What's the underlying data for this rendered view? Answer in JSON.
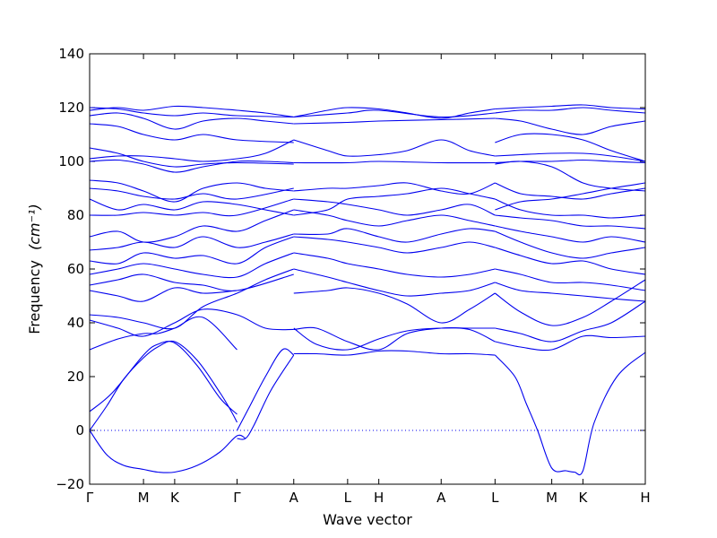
{
  "chart_data": {
    "type": "line",
    "title": "",
    "xlabel": "Wave vector",
    "ylabel": "Frequency",
    "ylabel_unit": "(cm⁻¹)",
    "ylim": [
      -20,
      140
    ],
    "yticks": [
      -20,
      0,
      20,
      40,
      60,
      80,
      100,
      120,
      140
    ],
    "grid": false,
    "line_color": "#0000ee",
    "zero_line": {
      "y": 0,
      "style": "dotted",
      "color": "#0000ee"
    },
    "x_ticks": [
      {
        "label": "Γ",
        "x": 0.0
      },
      {
        "label": "M",
        "x": 0.95
      },
      {
        "label": "K",
        "x": 1.5
      },
      {
        "label": "Γ",
        "x": 2.6
      },
      {
        "label": "A",
        "x": 3.6
      },
      {
        "label": "L",
        "x": 4.55
      },
      {
        "label": "H",
        "x": 5.1
      },
      {
        "label": "A",
        "x": 6.2
      },
      {
        "label": "L",
        "x": 7.15
      },
      {
        "label": "M",
        "x": 8.15
      },
      {
        "label": "K",
        "x": 8.7
      },
      {
        "label": "H",
        "x": 9.8
      }
    ],
    "xlim": [
      0,
      9.8
    ],
    "series": [
      {
        "x": [
          0,
          0.3,
          0.6,
          0.95,
          1.2,
          1.5,
          1.9,
          2.3,
          2.6,
          2.75
        ],
        "y": [
          0,
          -9,
          -13,
          -14.5,
          -15.5,
          -15.5,
          -13,
          -8,
          -2,
          -3
        ]
      },
      {
        "x": [
          0,
          0.3,
          0.6,
          0.95,
          1.2,
          1.5,
          1.9,
          2.3,
          2.5,
          2.6
        ],
        "y": [
          0,
          9,
          19,
          27,
          31,
          33,
          26,
          14,
          7,
          3
        ]
      },
      {
        "x": [
          0,
          0.4,
          0.95,
          1.2,
          1.5,
          1.9,
          2.3,
          2.6
        ],
        "y": [
          7,
          14,
          28,
          32,
          32.5,
          24,
          12,
          6
        ]
      },
      {
        "x": [
          2.6,
          2.75,
          2.9,
          3.2,
          3.6
        ],
        "y": [
          -3,
          -3,
          2,
          15,
          28
        ]
      },
      {
        "x": [
          2.6,
          2.8,
          3.1,
          3.4,
          3.6
        ],
        "y": [
          0,
          8,
          20,
          30,
          28
        ]
      },
      {
        "x": [
          3.6,
          4.0,
          4.55,
          5.1,
          5.6,
          6.2,
          6.7,
          7.15
        ],
        "y": [
          28.5,
          28.5,
          28,
          29.5,
          29.5,
          28.5,
          28.5,
          28
        ]
      },
      {
        "x": [
          3.6,
          4.0,
          4.55,
          5.1,
          5.6,
          6.2,
          6.7,
          7.15
        ],
        "y": [
          37.5,
          38,
          33,
          30,
          36,
          38,
          38,
          38
        ]
      },
      {
        "x": [
          3.6,
          4.0,
          4.55,
          5.1,
          5.6,
          6.2,
          6.7,
          7.15
        ],
        "y": [
          38,
          32,
          30,
          34,
          37,
          38,
          37.5,
          33
        ]
      },
      {
        "x": [
          7.15,
          7.5,
          7.7,
          7.9,
          8.15,
          8.4,
          8.55,
          8.7,
          8.9,
          9.3,
          9.8
        ],
        "y": [
          28,
          20,
          10,
          0,
          -14,
          -15,
          -15.5,
          -15,
          3,
          20,
          29
        ]
      },
      {
        "x": [
          7.15,
          7.6,
          8.15,
          8.7,
          9.2,
          9.8
        ],
        "y": [
          33,
          31,
          30,
          35,
          34.5,
          35
        ]
      },
      {
        "x": [
          7.15,
          7.6,
          8.15,
          8.7,
          9.2,
          9.8
        ],
        "y": [
          38,
          36,
          33,
          37,
          40,
          48
        ]
      },
      {
        "x": [
          0,
          0.5,
          0.95,
          1.2,
          1.5,
          2.0,
          2.6
        ],
        "y": [
          30,
          34,
          36,
          36,
          38,
          42,
          30
        ]
      },
      {
        "x": [
          0,
          0.5,
          0.95,
          1.5,
          2.0,
          2.6,
          3.1,
          3.6
        ],
        "y": [
          41,
          38,
          35,
          40,
          45,
          43,
          38,
          37.5
        ]
      },
      {
        "x": [
          0,
          0.5,
          0.95,
          1.5,
          2.0,
          2.6,
          3.1,
          3.6
        ],
        "y": [
          43,
          42,
          40,
          38,
          46,
          51,
          56,
          60
        ]
      },
      {
        "x": [
          3.6,
          4.2,
          4.55,
          5.1,
          5.6,
          6.2,
          6.7,
          7.15
        ],
        "y": [
          60,
          57,
          55,
          52,
          50,
          51,
          52,
          55
        ]
      },
      {
        "x": [
          3.6,
          4.2,
          4.55,
          5.1,
          5.6,
          6.2,
          6.7,
          7.15
        ],
        "y": [
          51,
          52,
          53,
          51,
          47,
          40,
          45,
          51
        ]
      },
      {
        "x": [
          7.15,
          7.6,
          8.15,
          8.7,
          9.2,
          9.8
        ],
        "y": [
          55,
          52,
          51,
          50,
          49,
          48
        ]
      },
      {
        "x": [
          7.15,
          7.6,
          8.15,
          8.7,
          9.2,
          9.8
        ],
        "y": [
          51,
          44,
          39,
          42,
          48,
          56
        ]
      },
      {
        "x": [
          0,
          0.5,
          0.95,
          1.5,
          2.0,
          2.6
        ],
        "y": [
          52,
          50,
          48,
          53,
          51,
          52
        ]
      },
      {
        "x": [
          0,
          0.5,
          0.95,
          1.5,
          2.0,
          2.6,
          3.6
        ],
        "y": [
          54,
          56,
          58,
          55,
          54,
          52,
          58
        ]
      },
      {
        "x": [
          0,
          0.5,
          0.95,
          1.5,
          2.0,
          2.6,
          3.1,
          3.6
        ],
        "y": [
          58,
          60,
          62,
          60,
          58,
          57,
          62,
          66
        ]
      },
      {
        "x": [
          3.6,
          4.2,
          4.55,
          5.1,
          5.6,
          6.2,
          6.7,
          7.15
        ],
        "y": [
          66,
          64,
          62,
          60,
          58,
          57,
          58,
          60
        ]
      },
      {
        "x": [
          7.15,
          7.6,
          8.15,
          8.7,
          9.2,
          9.8
        ],
        "y": [
          60,
          58,
          55,
          55,
          54,
          52
        ]
      },
      {
        "x": [
          0,
          0.5,
          0.95,
          1.5,
          2.0,
          2.6,
          3.1,
          3.6
        ],
        "y": [
          63,
          62,
          66,
          64,
          65,
          62,
          68,
          72
        ]
      },
      {
        "x": [
          3.6,
          4.2,
          4.55,
          5.1,
          5.6,
          6.2,
          6.7,
          7.15
        ],
        "y": [
          72,
          71,
          70,
          68,
          66,
          68,
          70,
          68
        ]
      },
      {
        "x": [
          7.15,
          7.6,
          8.15,
          8.7,
          9.2,
          9.8
        ],
        "y": [
          68,
          65,
          62,
          63,
          60,
          58
        ]
      },
      {
        "x": [
          0,
          0.5,
          0.95,
          1.5,
          2.0,
          2.6,
          3.1,
          3.6
        ],
        "y": [
          67,
          68,
          70,
          68,
          72,
          68,
          70,
          73
        ]
      },
      {
        "x": [
          3.6,
          4.2,
          4.55,
          5.1,
          5.6,
          6.2,
          6.7,
          7.15
        ],
        "y": [
          73,
          73,
          75,
          72,
          70,
          73,
          75,
          74
        ]
      },
      {
        "x": [
          7.15,
          7.6,
          8.15,
          8.7,
          9.2,
          9.8
        ],
        "y": [
          74,
          70,
          66,
          64,
          66,
          68
        ]
      },
      {
        "x": [
          0,
          0.5,
          0.95,
          1.5,
          2.0,
          2.6,
          3.1,
          3.6
        ],
        "y": [
          72,
          74,
          70,
          72,
          76,
          74,
          78,
          82
        ]
      },
      {
        "x": [
          3.6,
          4.2,
          4.55,
          5.1,
          5.6,
          6.2,
          6.7,
          7.15
        ],
        "y": [
          82,
          80,
          78,
          76,
          78,
          80,
          78,
          76
        ]
      },
      {
        "x": [
          7.15,
          7.6,
          8.15,
          8.7,
          9.2,
          9.8
        ],
        "y": [
          76,
          74,
          72,
          70,
          72,
          70
        ]
      },
      {
        "x": [
          0,
          0.5,
          0.95,
          1.5,
          2.0,
          2.6,
          3.6
        ],
        "y": [
          80,
          80,
          81,
          80,
          81,
          80,
          86
        ]
      },
      {
        "x": [
          3.6,
          4.2,
          4.55,
          5.1,
          5.6,
          6.2,
          6.7,
          7.15
        ],
        "y": [
          86,
          85,
          84,
          82,
          80,
          82,
          84,
          80
        ]
      },
      {
        "x": [
          7.15,
          7.6,
          8.15,
          8.7,
          9.2,
          9.8
        ],
        "y": [
          80,
          79,
          78,
          76,
          76,
          75
        ]
      },
      {
        "x": [
          0,
          0.5,
          0.95,
          1.5,
          2.0,
          2.6,
          3.1,
          3.6
        ],
        "y": [
          86,
          82,
          84,
          82,
          85,
          84,
          82,
          80
        ]
      },
      {
        "x": [
          3.6,
          4.2,
          4.55,
          5.1,
          5.6,
          6.2,
          6.7,
          7.15
        ],
        "y": [
          80,
          82,
          86,
          87,
          88,
          90,
          88,
          86
        ]
      },
      {
        "x": [
          7.15,
          7.6,
          8.15,
          8.7,
          9.2,
          9.8
        ],
        "y": [
          86,
          82,
          80,
          80,
          79,
          80
        ]
      },
      {
        "x": [
          0,
          0.5,
          0.95,
          1.5,
          2.0,
          2.6,
          3.1,
          3.6
        ],
        "y": [
          93,
          92,
          89,
          85,
          90,
          92,
          90,
          89
        ]
      },
      {
        "x": [
          3.6,
          4.2,
          4.55,
          5.1,
          5.6,
          6.2,
          6.7,
          7.15
        ],
        "y": [
          89,
          90,
          90,
          91,
          92,
          89,
          88,
          92
        ]
      },
      {
        "x": [
          7.15,
          7.6,
          8.15,
          8.7,
          9.2,
          9.8
        ],
        "y": [
          92,
          88,
          87,
          86,
          88,
          90
        ]
      },
      {
        "x": [
          0,
          0.5,
          0.95,
          1.5,
          2.0,
          2.6,
          3.6
        ],
        "y": [
          90,
          89,
          87,
          86,
          88,
          86,
          90
        ]
      },
      {
        "x": [
          7.15,
          7.6,
          8.15,
          8.7,
          9.2,
          9.8
        ],
        "y": [
          82,
          85,
          86,
          88,
          90,
          92
        ]
      },
      {
        "x": [
          0,
          0.5,
          0.95,
          1.5,
          2.0,
          2.6,
          3.1,
          3.6
        ],
        "y": [
          100,
          100.5,
          99,
          96,
          98,
          100,
          100,
          99.5
        ]
      },
      {
        "x": [
          3.6,
          4.55,
          5.1,
          6.2,
          7.15
        ],
        "y": [
          99.5,
          99.5,
          100,
          99.5,
          99.5
        ]
      },
      {
        "x": [
          7.15,
          7.6,
          8.15,
          8.7,
          9.2,
          9.8
        ],
        "y": [
          99.5,
          100,
          100,
          100.5,
          100,
          99.5
        ]
      },
      {
        "x": [
          0,
          0.5,
          0.95,
          1.5,
          2.0,
          2.6,
          3.1,
          3.6
        ],
        "y": [
          101,
          102,
          102,
          101,
          100,
          101,
          103,
          108
        ]
      },
      {
        "x": [
          3.6,
          4.2,
          4.55,
          5.1,
          5.6,
          6.2,
          6.7,
          7.15
        ],
        "y": [
          108,
          104,
          102,
          102.5,
          104,
          108,
          104,
          102
        ]
      },
      {
        "x": [
          7.15,
          7.6,
          8.15,
          8.7,
          9.2,
          9.8
        ],
        "y": [
          102,
          102.5,
          103,
          103,
          102,
          100
        ]
      },
      {
        "x": [
          0,
          0.5,
          0.95,
          1.5,
          2.0,
          2.6,
          3.6
        ],
        "y": [
          105,
          103,
          100,
          98,
          99,
          99.5,
          99
        ]
      },
      {
        "x": [
          7.15,
          7.6,
          8.15,
          8.7,
          9.2,
          9.8
        ],
        "y": [
          99,
          100,
          98,
          92,
          90,
          89
        ]
      },
      {
        "x": [
          0,
          0.5,
          0.95,
          1.5,
          2.0,
          2.6,
          3.6
        ],
        "y": [
          114,
          113,
          110,
          108,
          110,
          108,
          107
        ]
      },
      {
        "x": [
          0,
          0.5,
          0.95,
          1.5,
          2.0,
          2.6,
          3.1,
          3.6
        ],
        "y": [
          117,
          118,
          116,
          112,
          115,
          116,
          115,
          114
        ]
      },
      {
        "x": [
          3.6,
          4.55,
          5.1,
          6.2,
          7.15
        ],
        "y": [
          114,
          114.5,
          115,
          115.5,
          116
        ]
      },
      {
        "x": [
          7.15,
          7.6,
          8.15,
          8.7,
          9.2,
          9.8
        ],
        "y": [
          107,
          110,
          110,
          108,
          104,
          100
        ]
      },
      {
        "x": [
          7.15,
          7.6,
          8.15,
          8.7,
          9.2,
          9.8
        ],
        "y": [
          116,
          115,
          112,
          110,
          113,
          115
        ]
      },
      {
        "x": [
          0,
          0.5,
          0.95,
          1.5,
          2.0,
          2.6,
          3.1,
          3.6
        ],
        "y": [
          119,
          120,
          119,
          120.5,
          120,
          119,
          118,
          116.5
        ]
      },
      {
        "x": [
          3.6,
          4.2,
          4.55,
          5.1,
          5.6,
          6.2,
          6.7,
          7.15
        ],
        "y": [
          116.5,
          119,
          120,
          119.5,
          118,
          116,
          118,
          119.5
        ]
      },
      {
        "x": [
          7.15,
          7.6,
          8.15,
          8.7,
          9.2,
          9.8
        ],
        "y": [
          119.5,
          120,
          120.5,
          121,
          120,
          119.5
        ]
      },
      {
        "x": [
          0,
          0.5,
          0.95,
          1.5,
          2.0,
          2.6,
          3.6
        ],
        "y": [
          120,
          119.5,
          118,
          117,
          118,
          117,
          116.5
        ]
      },
      {
        "x": [
          3.6,
          4.55,
          5.1,
          6.2,
          7.15
        ],
        "y": [
          116.5,
          118,
          119,
          116.5,
          118
        ]
      },
      {
        "x": [
          7.15,
          7.6,
          8.15,
          8.7,
          9.2,
          9.8
        ],
        "y": [
          118,
          119,
          119,
          120,
          119,
          118
        ]
      }
    ]
  }
}
